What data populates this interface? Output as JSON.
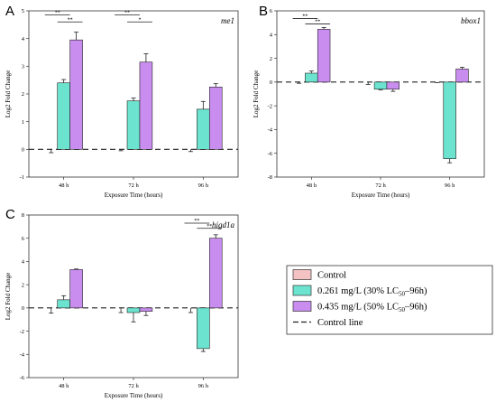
{
  "panels": [
    {
      "letter": "A",
      "gene": "me1",
      "type": "bar",
      "categories": [
        "48 h",
        "72 h",
        "96 h"
      ],
      "xlabel": "Exposure Time (hours)",
      "ylabel": "Log2 Fold Change",
      "ylim": [
        -1,
        5
      ],
      "yticks": [
        -1,
        0,
        1,
        2,
        3,
        4,
        5
      ],
      "series": [
        {
          "values": [
            0,
            0,
            0
          ],
          "errors": [
            0.12,
            0.05,
            0.08
          ]
        },
        {
          "values": [
            2.4,
            1.75,
            1.45
          ],
          "errors": [
            0.12,
            0.1,
            0.28
          ]
        },
        {
          "values": [
            3.95,
            3.15,
            2.25
          ],
          "errors": [
            0.28,
            0.3,
            0.12
          ]
        }
      ],
      "significance": [
        {
          "category": 0,
          "from": 0,
          "to": 1,
          "y": 4.85,
          "label": "**"
        },
        {
          "category": 0,
          "from": 1,
          "to": 2,
          "y": 4.6,
          "label": "**"
        },
        {
          "category": 1,
          "from": 0,
          "to": 1,
          "y": 4.85,
          "label": "**"
        },
        {
          "category": 1,
          "from": 1,
          "to": 2,
          "y": 4.6,
          "label": "*"
        }
      ]
    },
    {
      "letter": "B",
      "gene": "bbox1",
      "type": "bar",
      "categories": [
        "48 h",
        "72 h",
        "96 h"
      ],
      "xlabel": "Exposure Time (hours)",
      "ylabel": "Log2 Fold Change",
      "ylim": [
        -8,
        6
      ],
      "yticks": [
        -8,
        -6,
        -4,
        -2,
        0,
        2,
        4,
        6
      ],
      "series": [
        {
          "values": [
            0,
            0,
            0
          ],
          "errors": [
            0.1,
            0.2,
            0.05
          ]
        },
        {
          "values": [
            0.75,
            -0.6,
            -6.45
          ],
          "errors": [
            0.18,
            0.05,
            0.35
          ]
        },
        {
          "values": [
            4.45,
            -0.6,
            1.1
          ],
          "errors": [
            0.15,
            0.18,
            0.15
          ]
        }
      ],
      "significance": [
        {
          "category": 0,
          "from": 0,
          "to": 1,
          "y": 5.35,
          "label": "**"
        },
        {
          "category": 0,
          "from": 1,
          "to": 2,
          "y": 4.9,
          "label": "**"
        }
      ]
    },
    {
      "letter": "C",
      "gene": "higd1a",
      "type": "bar",
      "categories": [
        "48 h",
        "72 h",
        "96 h"
      ],
      "xlabel": "Exposure Time (hours)",
      "ylabel": "Log2 Fold Change",
      "ylim": [
        -6,
        8
      ],
      "yticks": [
        -6,
        -4,
        -2,
        0,
        2,
        4,
        6,
        8
      ],
      "series": [
        {
          "values": [
            0,
            0,
            0
          ],
          "errors": [
            0.45,
            0.4,
            0.4
          ]
        },
        {
          "values": [
            0.7,
            -0.4,
            -3.5
          ],
          "errors": [
            0.35,
            0.8,
            0.25
          ]
        },
        {
          "values": [
            3.3,
            -0.3,
            6.0
          ],
          "errors": [
            0.05,
            0.35,
            0.3
          ]
        }
      ],
      "significance": [
        {
          "category": 2,
          "from": 0,
          "to": 1,
          "y": 7.3,
          "label": "**"
        },
        {
          "category": 2,
          "from": 1,
          "to": 2,
          "y": 6.85,
          "label": "**"
        }
      ]
    }
  ],
  "legend": {
    "items": [
      {
        "label": "Control",
        "color": "#f4c2c2",
        "kind": "box"
      },
      {
        "label": "0.261 mg/L (30% LC50–96h)",
        "main": "0.261 mg/L (30% LC",
        "sub": "50",
        "tail": "–96h)",
        "color": "#6ce3cf",
        "kind": "box"
      },
      {
        "label": "0.435 mg/L (50% LC50–96h)",
        "main": "0.435 mg/L (50% LC",
        "sub": "50",
        "tail": "–96h)",
        "color": "#c98df0",
        "kind": "box"
      },
      {
        "label": "Control line",
        "kind": "dash"
      }
    ]
  },
  "colors": {
    "control": "#f4c2c2",
    "low": "#6ce3cf",
    "high": "#c98df0",
    "edge": "#222222"
  }
}
